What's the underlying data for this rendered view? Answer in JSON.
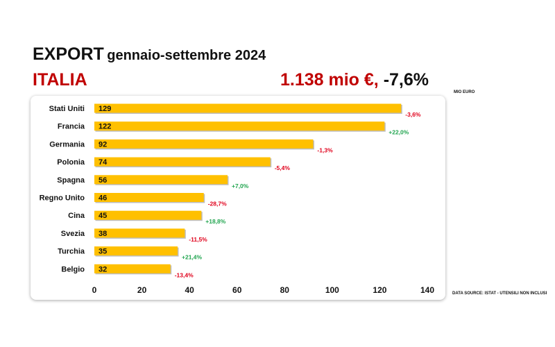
{
  "header": {
    "title_main": "EXPORT",
    "title_sub": "gennaio-settembre 2024",
    "country": "ITALIA",
    "total": "1.138 mio €,",
    "change": "-7,6%",
    "unit": "MIO EURO",
    "source": "DATA SOURCE: ISTAT - UTENSILI NON INCLUSI"
  },
  "colors": {
    "bar": "#ffc000",
    "negative": "#e0001b",
    "positive": "#22a550",
    "accent": "#c00000"
  },
  "chart_data": {
    "type": "bar",
    "orientation": "horizontal",
    "categories": [
      "Stati Uniti",
      "Francia",
      "Germania",
      "Polonia",
      "Spagna",
      "Regno Unito",
      "Cina",
      "Svezia",
      "Turchia",
      "Belgio"
    ],
    "values": [
      129,
      122,
      92,
      74,
      56,
      46,
      45,
      38,
      35,
      32
    ],
    "value_labels": [
      "129",
      "122",
      "92",
      "74",
      "56",
      "46",
      "45",
      "38",
      "35",
      "32"
    ],
    "changes": [
      "-3,6%",
      "+22,0%",
      "-1,3%",
      "-5,4%",
      "+7,0%",
      "-28,7%",
      "+18,8%",
      "-11,5%",
      "+21,4%",
      "-13,4%"
    ],
    "xticks": [
      0,
      20,
      40,
      60,
      80,
      100,
      120,
      140
    ],
    "xlim": [
      0,
      140
    ],
    "grid": false,
    "legend": "none"
  }
}
